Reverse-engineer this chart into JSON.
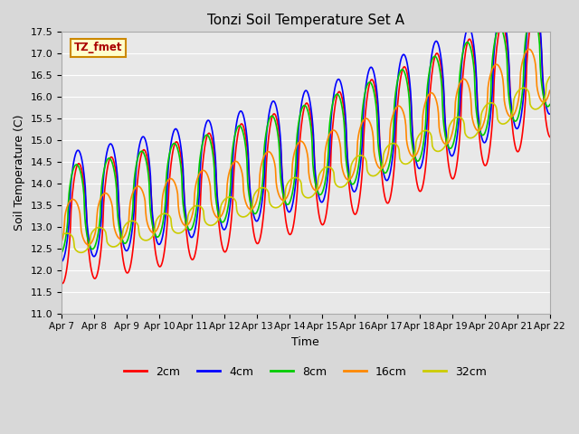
{
  "title": "Tonzi Soil Temperature Set A",
  "xlabel": "Time",
  "ylabel": "Soil Temperature (C)",
  "ylim": [
    11.0,
    17.5
  ],
  "yticks": [
    11.0,
    11.5,
    12.0,
    12.5,
    13.0,
    13.5,
    14.0,
    14.5,
    15.0,
    15.5,
    16.0,
    16.5,
    17.0,
    17.5
  ],
  "xtick_labels": [
    "Apr 7",
    "Apr 8",
    "Apr 9",
    "Apr 10",
    "Apr 11",
    "Apr 12",
    "Apr 13",
    "Apr 14",
    "Apr 15",
    "Apr 16",
    "Apr 17",
    "Apr 18",
    "Apr 19",
    "Apr 20",
    "Apr 21",
    "Apr 22"
  ],
  "label_box": "TZ_fmet",
  "series_labels": [
    "2cm",
    "4cm",
    "8cm",
    "16cm",
    "32cm"
  ],
  "series_colors": [
    "#ff0000",
    "#0000ff",
    "#00cc00",
    "#ff8800",
    "#cccc00"
  ],
  "line_width": 1.2,
  "plot_bg_color": "#e8e8e8",
  "fig_bg_color": "#d8d8d8",
  "grid_color": "#ffffff",
  "n_points": 720
}
